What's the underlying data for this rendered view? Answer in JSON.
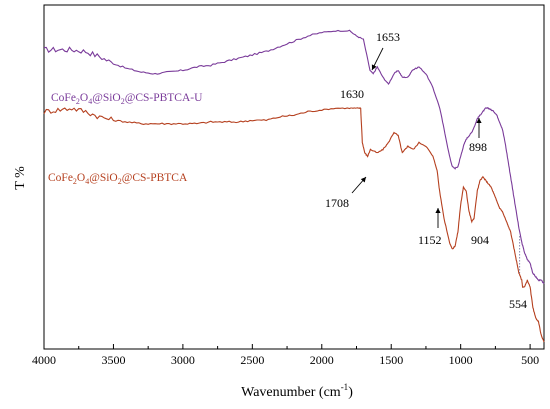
{
  "chart_data": {
    "type": "line",
    "xlabel": "Wavenumber (cm",
    "xlabel_sup": "-1",
    "xlabel_end": ")",
    "ylabel": "T %",
    "xlim": [
      4000,
      400
    ],
    "ylim": [
      0,
      100
    ],
    "y_ticks_labeled": false,
    "grid": false,
    "x_ticks": [
      "4000",
      "3500",
      "3000",
      "2500",
      "2000",
      "1500",
      "1000",
      "500"
    ],
    "series": [
      {
        "name": "CoFe2O4@SiO2@CS-PBTCA-U",
        "label_parts": [
          {
            "t": "CoFe",
            "sub": false
          },
          {
            "t": "2",
            "sub": true
          },
          {
            "t": "O",
            "sub": false
          },
          {
            "t": "4",
            "sub": true
          },
          {
            "t": "@SiO",
            "sub": false
          },
          {
            "t": "2",
            "sub": true
          },
          {
            "t": "@CS-PBTCA-U",
            "sub": false
          }
        ],
        "color": "#7a3b9a",
        "x": [
          4000,
          3900,
          3800,
          3700,
          3600,
          3500,
          3400,
          3300,
          3200,
          3100,
          3000,
          2900,
          2800,
          2700,
          2600,
          2500,
          2400,
          2300,
          2200,
          2100,
          2000,
          1900,
          1800,
          1750,
          1700,
          1653,
          1630,
          1600,
          1560,
          1520,
          1480,
          1450,
          1420,
          1380,
          1350,
          1300,
          1250,
          1200,
          1150,
          1120,
          1080,
          1060,
          1040,
          1020,
          1000,
          980,
          960,
          940,
          920,
          898,
          880,
          860,
          840,
          820,
          800,
          780,
          760,
          740,
          720,
          700,
          680,
          660,
          640,
          620,
          600,
          580,
          560,
          540,
          520,
          500,
          480,
          460,
          440,
          420,
          400
        ],
        "y": [
          87,
          87,
          87,
          86.5,
          85,
          83,
          81.5,
          80.5,
          80,
          80.5,
          81,
          82,
          82.5,
          83.5,
          84.5,
          85.5,
          86.5,
          88,
          89.5,
          91,
          92,
          92.5,
          92.5,
          91,
          90,
          81,
          80,
          82,
          79,
          77,
          80,
          81,
          79,
          79,
          81,
          82,
          80,
          76,
          70,
          64,
          56,
          53,
          52.5,
          53,
          56,
          59,
          61,
          62,
          63,
          65,
          67,
          68,
          69,
          70,
          70,
          69.5,
          69,
          68,
          66,
          64,
          60,
          55,
          50,
          45,
          40,
          35,
          31,
          28,
          26,
          25,
          22,
          21,
          20,
          20,
          19
        ]
      },
      {
        "name": "CoFe2O4@SiO2@CS-PBTCA",
        "label_parts": [
          {
            "t": "CoFe",
            "sub": false
          },
          {
            "t": "2",
            "sub": true
          },
          {
            "t": "O",
            "sub": false
          },
          {
            "t": "4",
            "sub": true
          },
          {
            "t": "@SiO",
            "sub": false
          },
          {
            "t": "2",
            "sub": true
          },
          {
            "t": "@CS-PBTCA",
            "sub": false
          }
        ],
        "color": "#b5401f",
        "x": [
          4000,
          3900,
          3800,
          3700,
          3600,
          3500,
          3400,
          3300,
          3200,
          3100,
          3000,
          2900,
          2800,
          2700,
          2600,
          2500,
          2400,
          2300,
          2200,
          2100,
          2000,
          1900,
          1800,
          1750,
          1720,
          1708,
          1690,
          1670,
          1650,
          1600,
          1560,
          1520,
          1480,
          1450,
          1420,
          1400,
          1380,
          1340,
          1300,
          1250,
          1200,
          1170,
          1152,
          1120,
          1080,
          1060,
          1040,
          1020,
          1000,
          980,
          960,
          940,
          920,
          904,
          880,
          860,
          840,
          820,
          800,
          780,
          760,
          740,
          720,
          700,
          680,
          660,
          640,
          620,
          600,
          580,
          560,
          554,
          540,
          520,
          500,
          480,
          460,
          440,
          420,
          400
        ],
        "y": [
          69,
          69.5,
          70,
          69,
          67.5,
          66.5,
          66,
          65.5,
          65.5,
          65.5,
          65.5,
          65.5,
          66,
          66,
          66,
          66.5,
          66.5,
          67.5,
          68,
          69,
          69.5,
          70,
          70,
          70,
          70,
          60,
          57,
          56,
          58,
          57,
          58,
          60,
          63,
          62,
          57,
          58,
          59,
          58,
          60,
          59,
          56,
          52,
          46,
          38,
          31,
          29,
          30,
          34,
          42,
          47,
          46,
          40,
          37,
          38,
          46,
          49,
          50,
          49,
          48,
          47,
          45,
          43,
          41,
          40,
          38,
          36,
          34,
          30,
          26,
          22,
          20,
          18,
          18,
          20,
          18,
          12,
          9,
          8,
          4,
          2
        ]
      }
    ],
    "annotations": [
      {
        "text": "1653",
        "x": 1653,
        "series": 0
      },
      {
        "text": "1630",
        "x": 1630,
        "series": 0
      },
      {
        "text": "898",
        "x": 898,
        "series": 0
      },
      {
        "text": "1708",
        "x": 1708,
        "series": 1
      },
      {
        "text": "1152",
        "x": 1152,
        "series": 1
      },
      {
        "text": "904",
        "x": 904,
        "series": 1
      },
      {
        "text": "554",
        "x": 554,
        "series": 1
      }
    ]
  }
}
